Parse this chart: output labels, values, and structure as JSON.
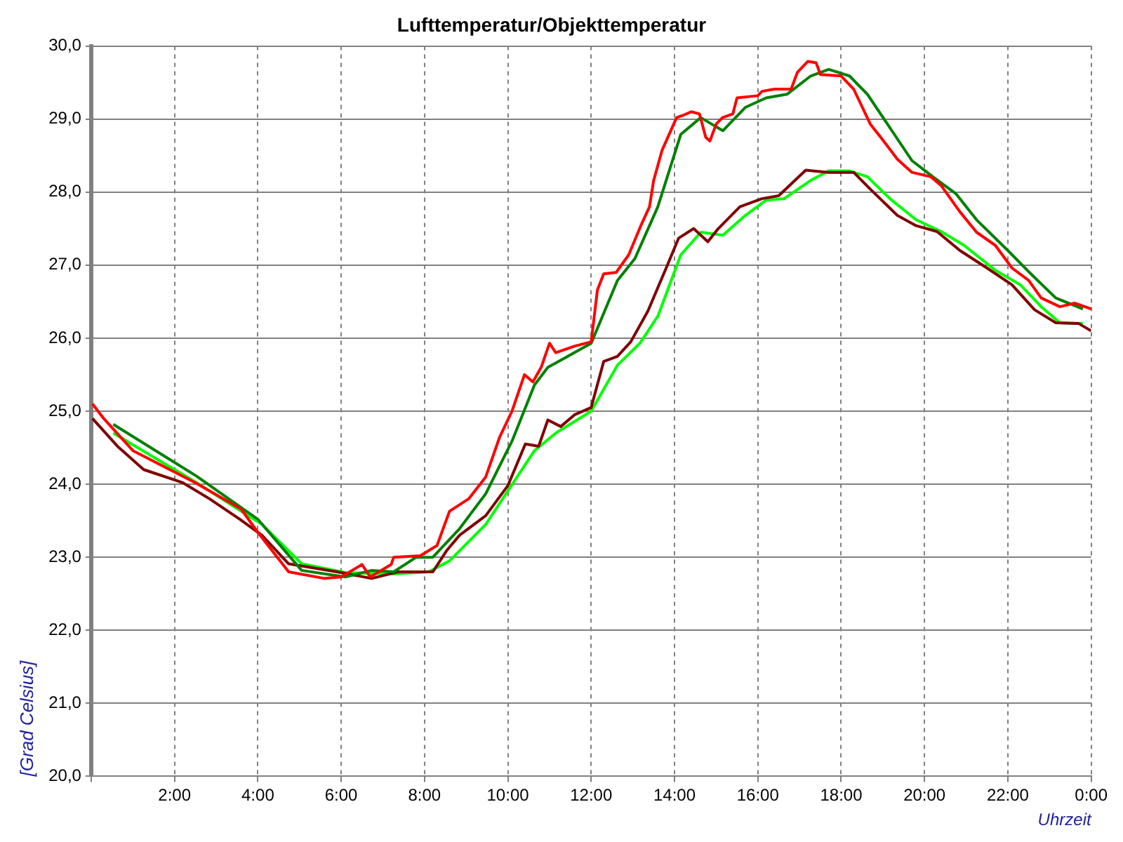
{
  "chart_data": {
    "type": "line",
    "title": "Lufttemperatur/Objekttemperatur",
    "xlabel": "Uhrzeit",
    "ylabel": "[Grad Celsius]",
    "xlim": [
      0,
      24
    ],
    "xticks": [
      {
        "value": 0,
        "label": null
      },
      {
        "value": 2,
        "label": "2:00"
      },
      {
        "value": 4,
        "label": "4:00"
      },
      {
        "value": 6,
        "label": "6:00"
      },
      {
        "value": 8,
        "label": "8:00"
      },
      {
        "value": 10,
        "label": "10:00"
      },
      {
        "value": 12,
        "label": "12:00"
      },
      {
        "value": 14,
        "label": "14:00"
      },
      {
        "value": 16,
        "label": "16:00"
      },
      {
        "value": 18,
        "label": "18:00"
      },
      {
        "value": 20,
        "label": "20:00"
      },
      {
        "value": 22,
        "label": "22:00"
      },
      {
        "value": 24,
        "label": "0:00"
      }
    ],
    "ylim": [
      20,
      30
    ],
    "yticks": [
      {
        "value": 20,
        "label": "20,0"
      },
      {
        "value": 21,
        "label": "21,0"
      },
      {
        "value": 22,
        "label": "22,0"
      },
      {
        "value": 23,
        "label": "23,0"
      },
      {
        "value": 24,
        "label": "24,0"
      },
      {
        "value": 25,
        "label": "25,0"
      },
      {
        "value": 26,
        "label": "26,0"
      },
      {
        "value": 27,
        "label": "27,0"
      },
      {
        "value": 28,
        "label": "28,0"
      },
      {
        "value": 29,
        "label": "29,0"
      },
      {
        "value": 30,
        "label": "30,0"
      }
    ],
    "grid": true,
    "legend": false,
    "marker": "none",
    "line_style": "solid",
    "series": [
      {
        "color": "#ff0000",
        "x": [
          0.03,
          0.3,
          1.0,
          2.5,
          3.6,
          4.0,
          4.74,
          5.6,
          6.0,
          6.5,
          6.7,
          7.2,
          7.26,
          7.9,
          8.3,
          8.6,
          9.06,
          9.47,
          9.8,
          10.1,
          10.4,
          10.6,
          10.8,
          11.0,
          11.15,
          11.6,
          12.0,
          12.15,
          12.3,
          12.6,
          12.9,
          13.2,
          13.4,
          13.5,
          13.7,
          14.05,
          14.2,
          14.4,
          14.6,
          14.75,
          14.85,
          15.0,
          15.15,
          15.4,
          15.5,
          16.0,
          16.1,
          16.4,
          16.8,
          16.95,
          17.2,
          17.4,
          17.5,
          18.0,
          18.3,
          18.7,
          18.95,
          19.35,
          19.7,
          20.15,
          20.4,
          20.85,
          21.25,
          21.7,
          22.1,
          22.5,
          22.8,
          23.25,
          23.6,
          24.0
        ],
        "values": [
          25.1,
          24.9,
          24.46,
          24.02,
          23.66,
          23.34,
          22.8,
          22.71,
          22.73,
          22.9,
          22.73,
          22.9,
          23.0,
          23.02,
          23.16,
          23.63,
          23.8,
          24.1,
          24.64,
          25.0,
          25.5,
          25.4,
          25.6,
          25.93,
          25.8,
          25.89,
          25.95,
          26.66,
          26.88,
          26.9,
          27.14,
          27.55,
          27.8,
          28.16,
          28.57,
          29.02,
          29.05,
          29.1,
          29.07,
          28.75,
          28.7,
          28.93,
          29.02,
          29.07,
          29.29,
          29.32,
          29.38,
          29.41,
          29.41,
          29.64,
          29.79,
          29.77,
          29.61,
          29.59,
          29.41,
          28.93,
          28.75,
          28.45,
          28.27,
          28.21,
          28.09,
          27.73,
          27.45,
          27.27,
          26.96,
          26.79,
          26.55,
          26.43,
          26.48,
          26.4
        ]
      },
      {
        "color": "#008000",
        "x": [
          0.53,
          2.53,
          4.0,
          5.05,
          6.1,
          6.73,
          7.26,
          7.8,
          8.2,
          8.84,
          9.47,
          10.1,
          10.64,
          10.96,
          11.5,
          12.0,
          12.63,
          13.05,
          13.6,
          14.15,
          14.63,
          15.16,
          15.7,
          16.2,
          16.7,
          17.27,
          17.7,
          18.2,
          18.63,
          19.17,
          19.7,
          20.2,
          20.75,
          21.25,
          22.0,
          22.5,
          23.15,
          23.8
        ],
        "values": [
          24.82,
          24.11,
          23.52,
          22.82,
          22.73,
          22.82,
          22.8,
          23.0,
          23.0,
          23.39,
          23.87,
          24.59,
          25.36,
          25.6,
          25.77,
          25.93,
          26.79,
          27.09,
          27.8,
          28.79,
          29.02,
          28.84,
          29.16,
          29.29,
          29.34,
          29.59,
          29.68,
          29.59,
          29.34,
          28.88,
          28.43,
          28.21,
          27.98,
          27.62,
          27.2,
          26.91,
          26.55,
          26.4
        ]
      },
      {
        "color": "#800000",
        "x": [
          0.03,
          0.63,
          1.26,
          2.2,
          2.84,
          3.57,
          4.1,
          4.74,
          5.27,
          5.9,
          6.73,
          7.36,
          8.2,
          8.53,
          8.84,
          9.47,
          10.0,
          10.42,
          10.74,
          10.96,
          11.27,
          11.6,
          12.0,
          12.3,
          12.63,
          12.95,
          13.36,
          13.8,
          14.1,
          14.46,
          14.8,
          15.05,
          15.57,
          16.1,
          16.5,
          17.15,
          17.7,
          18.3,
          18.7,
          19.35,
          19.8,
          20.3,
          20.85,
          21.5,
          22.1,
          22.64,
          23.15,
          23.7,
          24.0
        ],
        "values": [
          24.9,
          24.52,
          24.2,
          24.02,
          23.8,
          23.52,
          23.3,
          22.91,
          22.86,
          22.8,
          22.71,
          22.8,
          22.8,
          23.09,
          23.3,
          23.57,
          23.98,
          24.55,
          24.52,
          24.88,
          24.79,
          24.95,
          25.05,
          25.68,
          25.75,
          25.95,
          26.37,
          26.96,
          27.37,
          27.5,
          27.32,
          27.5,
          27.8,
          27.91,
          27.95,
          28.3,
          28.27,
          28.27,
          28.04,
          27.68,
          27.54,
          27.46,
          27.2,
          26.96,
          26.73,
          26.39,
          26.21,
          26.2,
          26.1
        ]
      },
      {
        "color": "#00ff00",
        "x": [
          0.53,
          2.53,
          4.1,
          5.05,
          6.1,
          7.26,
          8.1,
          8.6,
          9.47,
          10.64,
          11.15,
          12.0,
          12.63,
          13.17,
          13.6,
          14.15,
          14.63,
          15.16,
          15.7,
          16.2,
          16.63,
          17.27,
          17.7,
          18.2,
          18.63,
          19.17,
          19.8,
          20.4,
          20.95,
          21.7,
          22.3,
          22.8,
          23.25,
          23.8
        ],
        "values": [
          24.7,
          24.02,
          23.45,
          22.91,
          22.79,
          22.77,
          22.8,
          22.95,
          23.45,
          24.46,
          24.7,
          25.0,
          25.63,
          25.93,
          26.3,
          27.14,
          27.45,
          27.41,
          27.68,
          27.89,
          27.91,
          28.16,
          28.29,
          28.29,
          28.21,
          27.91,
          27.62,
          27.46,
          27.27,
          26.93,
          26.73,
          26.43,
          26.21,
          26.2
        ]
      }
    ]
  }
}
